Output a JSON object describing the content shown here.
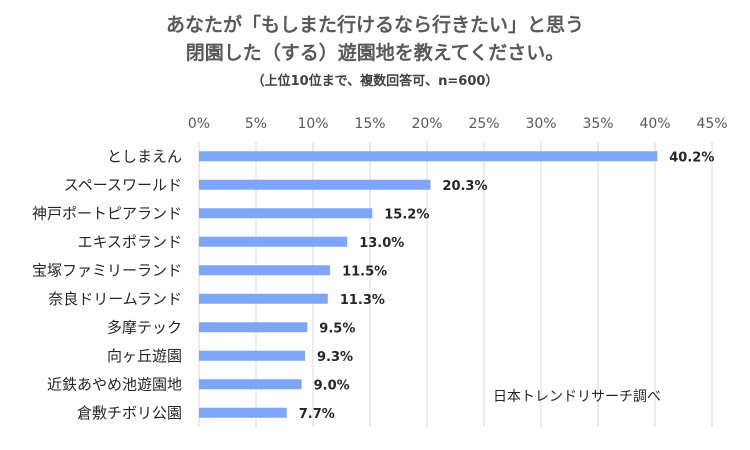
{
  "title": {
    "line1": "あなたが「もしまた行けるなら行きたい」と思う",
    "line2": "閉園した（する）遊園地を教えてください。",
    "subtitle": "（上位10位まで、複数回答可、n=600）"
  },
  "source": "日本トレンドリサーチ調べ",
  "colors": {
    "bar": "#7ea6f8",
    "grid": "#d9d9d9",
    "text": "#262626"
  },
  "chart_data": {
    "type": "bar",
    "orientation": "horizontal",
    "categories": [
      "としまえん",
      "スペースワールド",
      "神戸ポートピアランド",
      "エキスポランド",
      "宝塚ファミリーランド",
      "奈良ドリームランド",
      "多摩テック",
      "向ヶ丘遊園",
      "近鉄あやめ池遊園地",
      "倉敷チボリ公園"
    ],
    "values": [
      40.2,
      20.3,
      15.2,
      13.0,
      11.5,
      11.3,
      9.5,
      9.3,
      9.0,
      7.7
    ],
    "value_labels": [
      "40.2%",
      "20.3%",
      "15.2%",
      "13.0%",
      "11.5%",
      "11.3%",
      "9.5%",
      "9.3%",
      "9.0%",
      "7.7%"
    ],
    "xlim": [
      0,
      45
    ],
    "ticks": [
      0,
      5,
      10,
      15,
      20,
      25,
      30,
      35,
      40,
      45
    ],
    "tick_labels": [
      "0%",
      "5%",
      "10%",
      "15%",
      "20%",
      "25%",
      "30%",
      "35%",
      "40%",
      "45%"
    ],
    "axis_position": "top",
    "grid": true
  }
}
